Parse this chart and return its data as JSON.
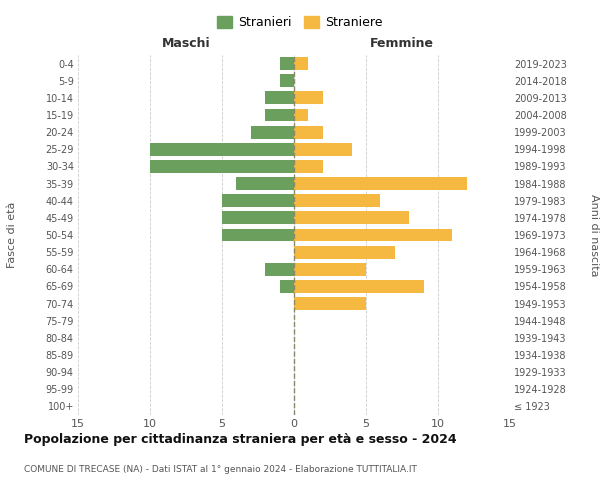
{
  "age_groups": [
    "100+",
    "95-99",
    "90-94",
    "85-89",
    "80-84",
    "75-79",
    "70-74",
    "65-69",
    "60-64",
    "55-59",
    "50-54",
    "45-49",
    "40-44",
    "35-39",
    "30-34",
    "25-29",
    "20-24",
    "15-19",
    "10-14",
    "5-9",
    "0-4"
  ],
  "birth_years": [
    "≤ 1923",
    "1924-1928",
    "1929-1933",
    "1934-1938",
    "1939-1943",
    "1944-1948",
    "1949-1953",
    "1954-1958",
    "1959-1963",
    "1964-1968",
    "1969-1973",
    "1974-1978",
    "1979-1983",
    "1984-1988",
    "1989-1993",
    "1994-1998",
    "1999-2003",
    "2004-2008",
    "2009-2013",
    "2014-2018",
    "2019-2023"
  ],
  "maschi": [
    0,
    0,
    0,
    0,
    0,
    0,
    0,
    1,
    2,
    0,
    5,
    5,
    5,
    4,
    10,
    10,
    3,
    2,
    2,
    1,
    1
  ],
  "femmine": [
    0,
    0,
    0,
    0,
    0,
    0,
    5,
    9,
    5,
    7,
    11,
    8,
    6,
    12,
    2,
    4,
    2,
    1,
    2,
    0,
    1
  ],
  "color_maschi": "#6a9f5e",
  "color_femmine": "#f5b942",
  "title": "Popolazione per cittadinanza straniera per età e sesso - 2024",
  "subtitle": "COMUNE DI TRECASE (NA) - Dati ISTAT al 1° gennaio 2024 - Elaborazione TUTTITALIA.IT",
  "xlabel_left": "Maschi",
  "xlabel_right": "Femmine",
  "ylabel_left": "Fasce di età",
  "ylabel_right": "Anni di nascita",
  "legend_maschi": "Stranieri",
  "legend_femmine": "Straniere",
  "xlim": 15,
  "background_color": "#ffffff",
  "grid_color": "#cccccc",
  "bar_height": 0.75
}
